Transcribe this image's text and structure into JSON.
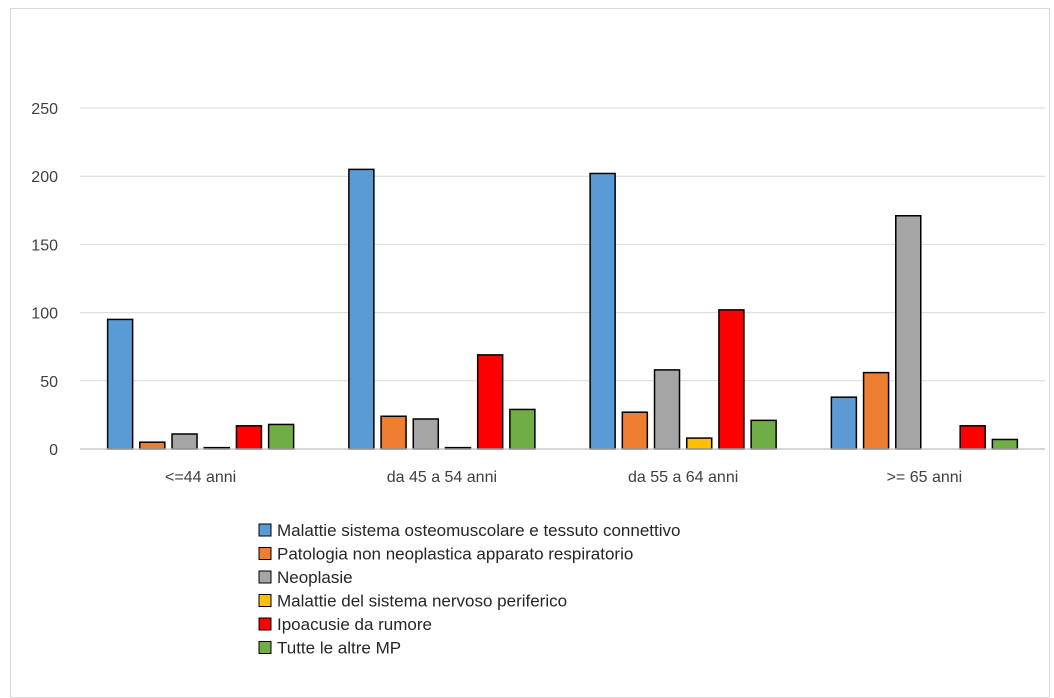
{
  "chart_data": {
    "type": "bar",
    "title": "",
    "xlabel": "",
    "ylabel": "",
    "ylim": [
      0,
      250
    ],
    "yticks": [
      0,
      50,
      100,
      150,
      200,
      250
    ],
    "grid": true,
    "legend_position": "bottom",
    "categories": [
      "<=44 anni",
      "da 45 a 54 anni",
      "da 55 a 64 anni",
      ">= 65 anni"
    ],
    "series": [
      {
        "name": "Malattie sistema osteomuscolare e tessuto connettivo",
        "color": "#5b9bd5",
        "values": [
          95,
          205,
          202,
          38
        ]
      },
      {
        "name": "Patologia non neoplastica apparato respiratorio",
        "color": "#ed7d31",
        "values": [
          5,
          24,
          27,
          56
        ]
      },
      {
        "name": "Neoplasie",
        "color": "#a5a5a5",
        "values": [
          11,
          22,
          58,
          171
        ]
      },
      {
        "name": "Malattie del sistema nervoso periferico",
        "color": "#ffc000",
        "values": [
          1,
          1,
          8,
          0
        ]
      },
      {
        "name": "Ipoacusie da rumore",
        "color": "#ff0000",
        "values": [
          17,
          69,
          102,
          17
        ]
      },
      {
        "name": "Tutte le altre MP",
        "color": "#70ad47",
        "values": [
          18,
          29,
          21,
          7
        ]
      }
    ]
  }
}
